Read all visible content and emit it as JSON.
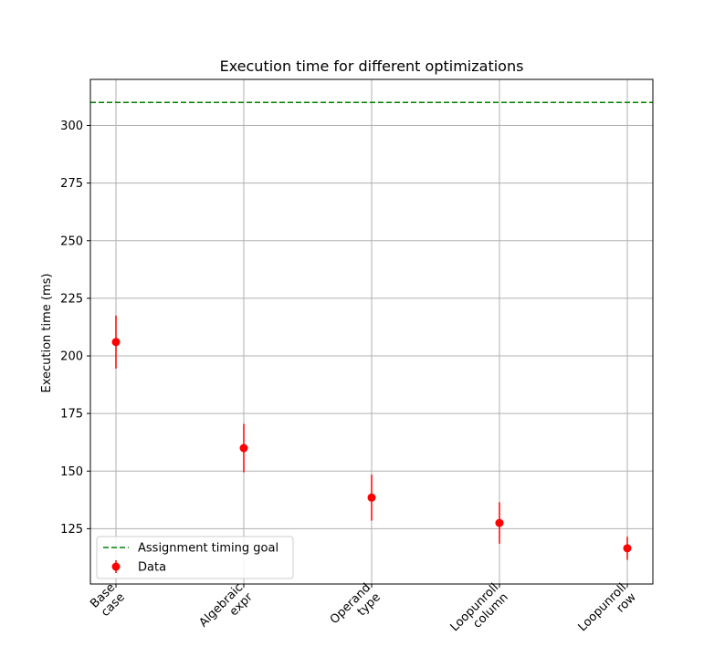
{
  "chart_data": {
    "type": "scatter",
    "title": "Execution time for different optimizations",
    "xlabel": "",
    "ylabel": "Execution time (ms)",
    "categories": [
      "Base\ncase",
      "Algebraic\nexpr",
      "Operand\ntype",
      "Loopunroll\ncolumn",
      "Loopunroll\nrow"
    ],
    "x_tick_rotation_deg": 45,
    "ylim": [
      101,
      320
    ],
    "yticks": [
      125,
      150,
      175,
      200,
      225,
      250,
      275,
      300
    ],
    "grid": true,
    "series": [
      {
        "name": "Data",
        "kind": "errorbar",
        "color": "#ff0000",
        "marker": "circle",
        "values": [
          206,
          160,
          138.5,
          127.5,
          116.5
        ],
        "errors": [
          11.5,
          10.5,
          10,
          9,
          5
        ]
      }
    ],
    "reference_lines": [
      {
        "name": "Assignment timing goal",
        "orientation": "horizontal",
        "value": 310,
        "style": "dashed",
        "color": "#008000"
      }
    ],
    "legend": {
      "position": "lower-left",
      "entries": [
        "Assignment timing goal",
        "Data"
      ]
    }
  }
}
